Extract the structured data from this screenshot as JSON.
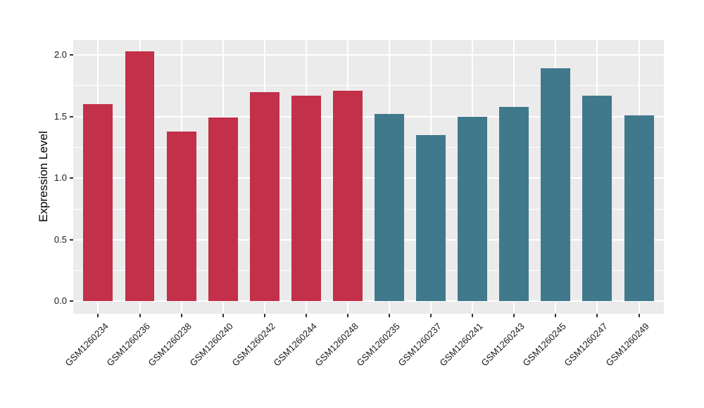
{
  "chart_data": {
    "type": "bar",
    "title": "",
    "xlabel": "",
    "ylabel": "Expression Level",
    "ylim": [
      -0.1,
      2.12
    ],
    "ytick_values": [
      0.0,
      0.5,
      1.0,
      1.5,
      2.0
    ],
    "ytick_labels": [
      "0.0",
      "0.5",
      "1.0",
      "1.5",
      "2.0"
    ],
    "minor_grid_step": 0.5,
    "minor_grid_start": 0.25,
    "grid": "on",
    "legend_position": "none",
    "x_label_angle": 45,
    "bar_width_fraction": 0.71,
    "panel_background": "#EBEBEB",
    "grid_color": "#FFFFFF",
    "outer_background": "#FFFFFF",
    "axis_text_color": "#1A1A1A",
    "tick_mark_color": "#333333",
    "categories": [
      "GSM1260234",
      "GSM1260236",
      "GSM1260238",
      "GSM1260240",
      "GSM1260242",
      "GSM1260244",
      "GSM1260248",
      "GSM1260235",
      "GSM1260237",
      "GSM1260241",
      "GSM1260243",
      "GSM1260245",
      "GSM1260247",
      "GSM1260249"
    ],
    "values": [
      1.6,
      2.03,
      1.38,
      1.49,
      1.7,
      1.67,
      1.71,
      1.52,
      1.35,
      1.5,
      1.58,
      1.89,
      1.67,
      1.51
    ],
    "groups": [
      "group1",
      "group1",
      "group1",
      "group1",
      "group1",
      "group1",
      "group1",
      "group2",
      "group2",
      "group2",
      "group2",
      "group2",
      "group2",
      "group2"
    ],
    "group_colors": {
      "group1": "#C23049",
      "group2": "#41798C"
    }
  }
}
